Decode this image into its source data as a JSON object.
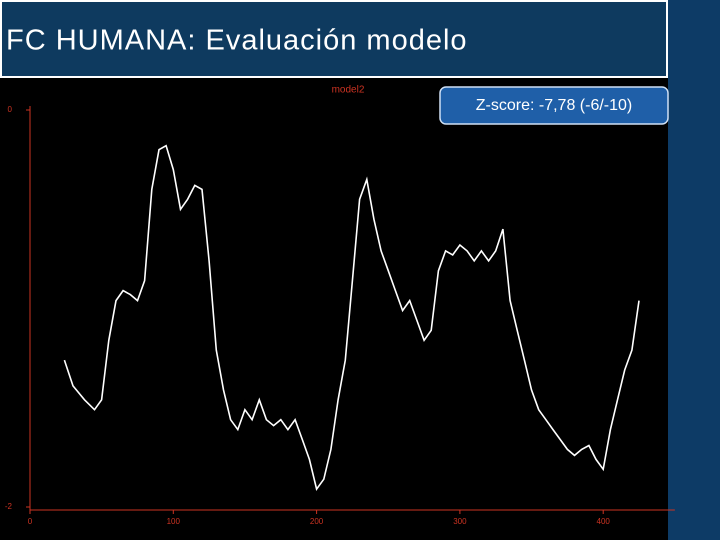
{
  "title": "FC HUMANA: Evaluación modelo",
  "annotation": "Z-score: -7,78 (-6/-10)",
  "chart_data": {
    "type": "line",
    "title": "model2",
    "x": [
      24,
      30,
      38,
      45,
      50,
      55,
      60,
      65,
      70,
      75,
      80,
      85,
      90,
      95,
      100,
      105,
      110,
      115,
      120,
      125,
      130,
      135,
      140,
      145,
      150,
      155,
      160,
      165,
      170,
      175,
      180,
      185,
      190,
      195,
      200,
      205,
      210,
      215,
      220,
      225,
      230,
      235,
      240,
      245,
      250,
      255,
      260,
      265,
      270,
      275,
      280,
      285,
      290,
      295,
      300,
      305,
      310,
      315,
      320,
      325,
      330,
      335,
      340,
      345,
      350,
      355,
      360,
      365,
      370,
      375,
      380,
      385,
      390,
      395,
      400,
      405,
      410,
      415,
      420,
      425
    ],
    "series": [
      {
        "name": "model2",
        "color": "#ffffff",
        "values": [
          -1.26,
          -1.39,
          -1.46,
          -1.51,
          -1.46,
          -1.16,
          -0.96,
          -0.91,
          -0.93,
          -0.96,
          -0.86,
          -0.4,
          -0.2,
          -0.18,
          -0.3,
          -0.5,
          -0.45,
          -0.38,
          -0.4,
          -0.76,
          -1.21,
          -1.41,
          -1.56,
          -1.61,
          -1.51,
          -1.56,
          -1.46,
          -1.56,
          -1.59,
          -1.56,
          -1.61,
          -1.56,
          -1.66,
          -1.76,
          -1.91,
          -1.86,
          -1.71,
          -1.46,
          -1.26,
          -0.86,
          -0.45,
          -0.35,
          -0.55,
          -0.71,
          -0.81,
          -0.91,
          -1.01,
          -0.96,
          -1.06,
          -1.16,
          -1.11,
          -0.81,
          -0.71,
          -0.73,
          -0.68,
          -0.71,
          -0.76,
          -0.71,
          -0.76,
          -0.71,
          -0.6,
          -0.96,
          -1.11,
          -1.26,
          -1.41,
          -1.51,
          -1.56,
          -1.61,
          -1.66,
          -1.71,
          -1.74,
          -1.71,
          -1.69,
          -1.76,
          -1.81,
          -1.61,
          -1.46,
          -1.31,
          -1.21,
          -0.96
        ]
      }
    ],
    "xlim": [
      0,
      450
    ],
    "ylim": [
      -2,
      0
    ],
    "xticks": [
      0,
      100,
      200,
      300,
      400
    ],
    "yticks": [
      0,
      -2
    ],
    "axis_color": "#cc3322"
  }
}
